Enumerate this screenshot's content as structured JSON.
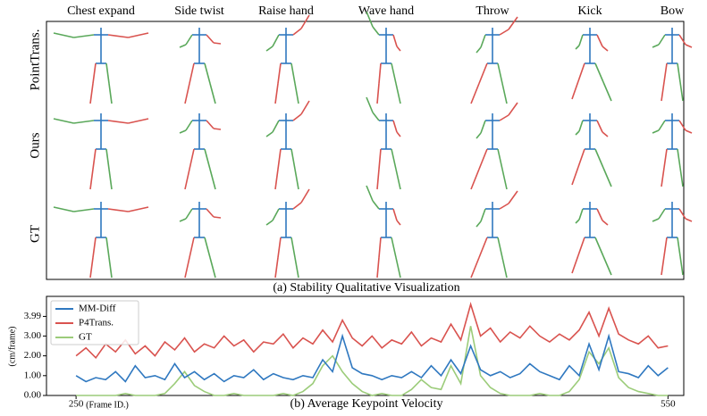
{
  "figure": {
    "columns": [
      "Chest expand",
      "Side twist",
      "Raise hand",
      "Wave hand",
      "Throw",
      "Kick",
      "Bow"
    ],
    "rows": [
      "PointTrans.",
      "Ours",
      "GT"
    ],
    "caption": "(a) Stability Qualitative Visualization"
  },
  "chart_data": {
    "type": "line",
    "title": "(b) Average Keypoint Velocity",
    "x_label": "(Frame ID.)",
    "y_label": "(cm/frame)",
    "x": [
      250,
      255,
      260,
      265,
      270,
      275,
      280,
      285,
      290,
      295,
      300,
      305,
      310,
      315,
      320,
      325,
      330,
      335,
      340,
      345,
      350,
      355,
      360,
      365,
      370,
      375,
      380,
      385,
      390,
      395,
      400,
      405,
      410,
      415,
      420,
      425,
      430,
      435,
      440,
      445,
      450,
      455,
      460,
      465,
      470,
      475,
      480,
      485,
      490,
      495,
      500,
      505,
      510,
      515,
      520,
      525,
      530,
      535,
      540,
      545,
      550
    ],
    "xlim": [
      235,
      558
    ],
    "xticks": [
      250,
      550
    ],
    "ylim": [
      0,
      5
    ],
    "yticks": [
      {
        "value": 0,
        "label": "0.00"
      },
      {
        "value": 1,
        "label": "1.00"
      },
      {
        "value": 2,
        "label": "2.00"
      },
      {
        "value": 3,
        "label": "3.00"
      },
      {
        "value": 3.99,
        "label": "3.99"
      }
    ],
    "legend": "upper left",
    "series": [
      {
        "name": "MM-Diff",
        "color": "#2f78c0",
        "values": [
          1.0,
          0.7,
          0.9,
          0.8,
          1.2,
          0.7,
          1.5,
          0.9,
          1.0,
          0.8,
          1.6,
          0.9,
          1.2,
          0.8,
          1.1,
          0.7,
          1.0,
          0.9,
          1.3,
          0.8,
          1.1,
          0.9,
          0.8,
          1.0,
          0.9,
          1.8,
          1.2,
          3.0,
          1.4,
          1.1,
          1.0,
          0.8,
          1.0,
          0.9,
          1.2,
          0.9,
          1.5,
          1.0,
          1.8,
          1.1,
          2.5,
          1.3,
          1.0,
          1.2,
          0.9,
          1.1,
          1.6,
          1.2,
          1.0,
          0.8,
          1.5,
          1.0,
          2.6,
          1.3,
          3.0,
          1.2,
          1.1,
          0.9,
          1.5,
          1.0,
          1.4
        ]
      },
      {
        "name": "P4Trans.",
        "color": "#d9534f",
        "values": [
          2.0,
          2.4,
          1.9,
          2.6,
          2.2,
          2.8,
          2.1,
          2.5,
          2.0,
          2.7,
          2.3,
          2.9,
          2.2,
          2.6,
          2.4,
          3.0,
          2.5,
          2.8,
          2.2,
          2.7,
          2.6,
          3.1,
          2.4,
          2.9,
          2.6,
          3.3,
          2.7,
          3.8,
          2.9,
          2.5,
          3.0,
          2.4,
          2.8,
          2.6,
          3.2,
          2.5,
          2.9,
          2.7,
          3.6,
          2.8,
          4.6,
          3.0,
          3.4,
          2.7,
          3.2,
          2.9,
          3.5,
          3.0,
          2.7,
          3.1,
          2.8,
          3.3,
          4.2,
          3.0,
          4.4,
          3.1,
          2.8,
          2.6,
          3.0,
          2.4,
          2.5
        ]
      },
      {
        "name": "GT",
        "color": "#9ccc7a",
        "values": [
          0.0,
          0.0,
          0.0,
          0.0,
          0.0,
          0.1,
          0.0,
          0.0,
          0.0,
          0.1,
          0.6,
          1.2,
          0.5,
          0.2,
          0.0,
          0.0,
          0.1,
          0.0,
          0.0,
          0.0,
          0.0,
          0.1,
          0.0,
          0.2,
          0.6,
          1.5,
          2.0,
          1.2,
          0.6,
          0.2,
          0.0,
          0.1,
          0.0,
          0.0,
          0.3,
          0.8,
          0.4,
          0.3,
          1.5,
          0.6,
          3.5,
          1.0,
          0.4,
          0.1,
          0.0,
          0.0,
          0.0,
          0.1,
          0.0,
          0.0,
          0.2,
          0.8,
          2.2,
          1.6,
          2.4,
          0.9,
          0.4,
          0.2,
          0.1,
          0.0,
          0.0
        ]
      }
    ]
  }
}
